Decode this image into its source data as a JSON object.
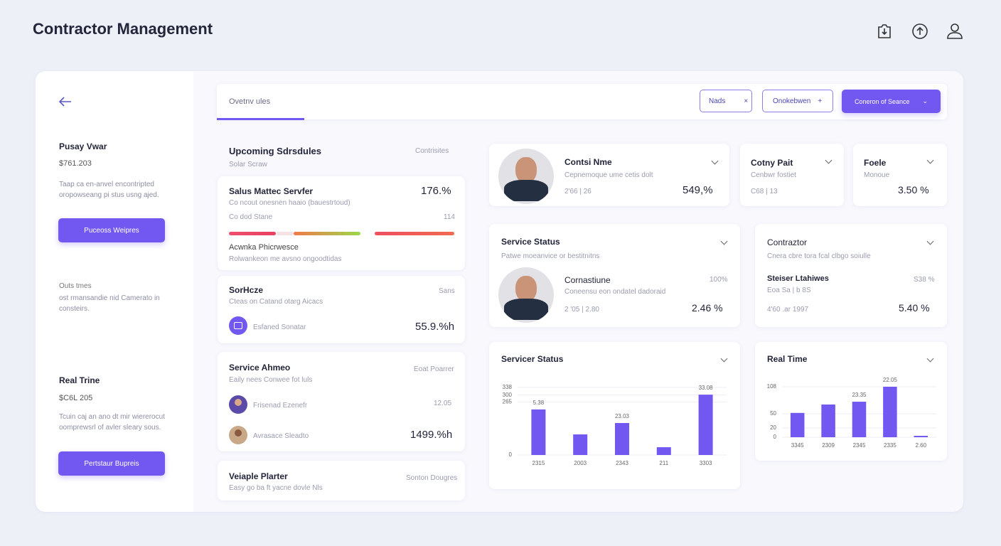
{
  "header": {
    "title": "Contractor Management"
  },
  "sidebar": {
    "block1": {
      "title": "Pusay Vwar",
      "value": "$761.203",
      "desc": "Taap ca en-anvel encontripted oropowseang pi stus usng ajed.",
      "button": "Puceoss Weipres"
    },
    "block2": {
      "title": "Outs tmes",
      "desc": "ost rmansandie nid Camerato in consteirs."
    },
    "block3": {
      "title": "Real Trine",
      "value": "$C6L 205",
      "desc": "Tcuin caj an ano dt mir wiererocut oomprewsrl of avler sleary sous.",
      "button": "Pertstaur Bupreis"
    }
  },
  "tabs": {
    "active": "Ovetnv ules",
    "filters": [
      "Nads",
      "Onokebwen",
      "Coneron of Seance"
    ]
  },
  "schedules": {
    "title": "Upcoming Sdrsdules",
    "subtitle": "Solar Scraw",
    "link": "Contrisites",
    "card1": {
      "title": "Salus Mattec Servfer",
      "value": "176.%",
      "desc": "Co ncout onesnen haaio (bauestrtoud)",
      "meta": "Co dod Stane",
      "meta_value": "114",
      "footer": "Acwnka Phicrwesce",
      "footer_desc": "Rolwankeon me avsno ongoodtidas"
    },
    "card2": {
      "title": "SorHcze",
      "tag": "Sans",
      "desc": "Cteas on Catand otarg Aicacs",
      "person": "Esfaned Sonatar",
      "value": "55.9.%h"
    },
    "card3": {
      "title": "Service Ahmeo",
      "tag": "Eoat Poarrer",
      "desc": "Eaily nees Conwee fot luls",
      "person1": "Frisenad Ezenefr",
      "value1": "12.05",
      "person2": "Avrasace Sleadto",
      "value2": "1499.%h"
    },
    "card4": {
      "title": "Veiaple Plarter",
      "tag": "Sonton Dougres",
      "desc": "Easy go ba ft yacne dovle Nls"
    }
  },
  "profiles": {
    "a": {
      "name": "Contsi Nme",
      "desc": "Cepnemoque ume cetis dolt",
      "meta": "2'66 | 26",
      "value": "549,%"
    },
    "b": {
      "name": "Cotny Pait",
      "desc": "Cenbwr fostiet",
      "meta": "C68 | 13"
    },
    "c": {
      "name": "Foele",
      "desc": "Monoue",
      "value": "3.50 %"
    },
    "status": {
      "title": "Service Status",
      "desc": "Patwe moeanvice or bestitnitns",
      "name": "Cornastiune",
      "person_desc": "Coneensu eon ondatel dadoraid",
      "meta": "2 '05 | 2.80",
      "tag": "100%",
      "value": "2.46 %"
    },
    "contractor": {
      "title": "Contraztor",
      "desc": "Cnera cbre tora fcal clbgo soiulle",
      "name": "Steiser Ltahiwes",
      "person_desc": "Eoa Sa | b 8S",
      "tag": "S38 %",
      "meta": "4'60 .ar 1997",
      "value": "5.40 %"
    }
  },
  "charts": {
    "services": {
      "type": "bar",
      "title": "Servicer Status",
      "color": "#7258f0",
      "categories": [
        "2315",
        "2003",
        "2343",
        "211",
        "3303"
      ],
      "values": [
        228,
        103,
        160,
        39,
        302
      ],
      "value_labels": [
        "5.38",
        null,
        "23.03",
        null,
        "33.08"
      ],
      "ylim": [
        0,
        338
      ],
      "yticks": [
        0,
        265,
        300,
        338
      ]
    },
    "real_time": {
      "type": "bar",
      "title": "Real Time",
      "color": "#7258f0",
      "categories": [
        "3345",
        "2309",
        "2345",
        "2335",
        "2.60"
      ],
      "values": [
        52,
        70,
        76,
        108,
        3
      ],
      "value_labels": [
        null,
        null,
        "23.35",
        "22.05",
        null
      ],
      "ylim": [
        0,
        108
      ],
      "yticks": [
        0,
        20,
        50,
        108
      ]
    }
  }
}
